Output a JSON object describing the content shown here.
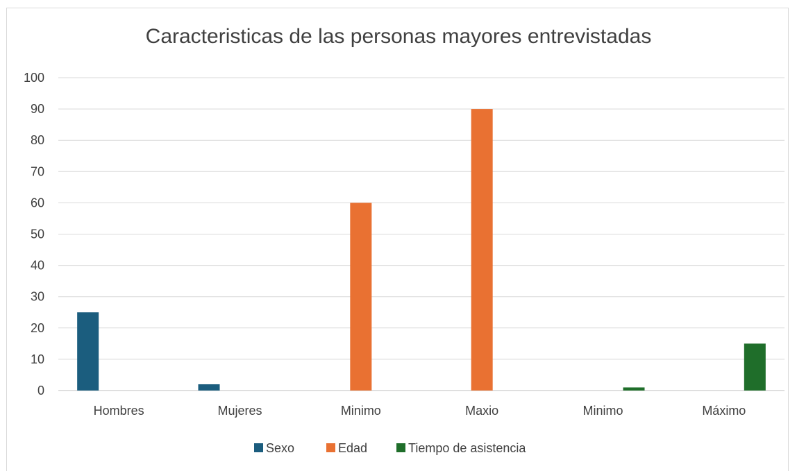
{
  "chart_data": {
    "type": "bar",
    "title": "Caracteristicas de las personas mayores entrevistadas",
    "categories": [
      "Hombres",
      "Mujeres",
      "Minimo",
      "Maxio",
      "Minimo",
      "Máximo"
    ],
    "series": [
      {
        "name": "Sexo",
        "color": "#1b5d7e",
        "values": [
          25,
          2,
          null,
          null,
          null,
          null
        ]
      },
      {
        "name": "Edad",
        "color": "#e97132",
        "values": [
          null,
          null,
          60,
          90,
          null,
          null
        ]
      },
      {
        "name": "Tiempo de asistencia",
        "color": "#1f6e2a",
        "values": [
          null,
          null,
          null,
          null,
          1,
          15
        ]
      }
    ],
    "ylim": [
      0,
      100
    ],
    "yticks": [
      0,
      10,
      20,
      30,
      40,
      50,
      60,
      70,
      80,
      90,
      100
    ],
    "grid": true,
    "legend": "bottom"
  }
}
